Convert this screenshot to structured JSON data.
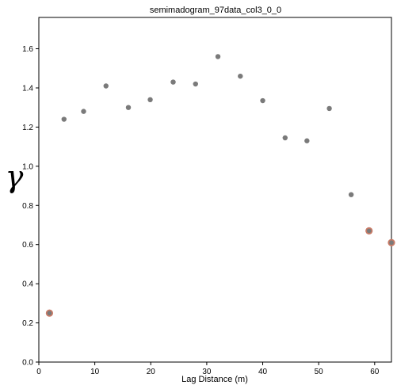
{
  "chart_data": {
    "type": "scatter",
    "title": "semimadogram_97data_col3_0_0",
    "xlabel": "Lag Distance (m)",
    "ylabel": "γ",
    "xlim": [
      0,
      63
    ],
    "ylim": [
      0,
      1.76
    ],
    "x_ticks": [
      "0",
      "10",
      "20",
      "30",
      "40",
      "50",
      "60"
    ],
    "y_ticks": [
      "0.0",
      "0.2",
      "0.4",
      "0.6",
      "0.8",
      "1.0",
      "1.2",
      "1.4",
      "1.6"
    ],
    "grid": false,
    "point_color": "#7a7a7a",
    "highlight_color": "#c87a66",
    "series": [
      {
        "points": [
          {
            "x": 1.9,
            "y": 0.25,
            "highlight": true
          },
          {
            "x": 4.5,
            "y": 1.24
          },
          {
            "x": 8.0,
            "y": 1.28
          },
          {
            "x": 12.0,
            "y": 1.41
          },
          {
            "x": 16.0,
            "y": 1.3
          },
          {
            "x": 19.9,
            "y": 1.34
          },
          {
            "x": 24.0,
            "y": 1.43
          },
          {
            "x": 28.0,
            "y": 1.42
          },
          {
            "x": 32.0,
            "y": 1.56
          },
          {
            "x": 36.0,
            "y": 1.46
          },
          {
            "x": 40.0,
            "y": 1.335
          },
          {
            "x": 44.0,
            "y": 1.145
          },
          {
            "x": 47.9,
            "y": 1.13
          },
          {
            "x": 51.9,
            "y": 1.295
          },
          {
            "x": 55.8,
            "y": 0.855
          },
          {
            "x": 59.0,
            "y": 0.67,
            "highlight": true
          },
          {
            "x": 63.0,
            "y": 0.61,
            "highlight": true
          }
        ]
      }
    ]
  }
}
